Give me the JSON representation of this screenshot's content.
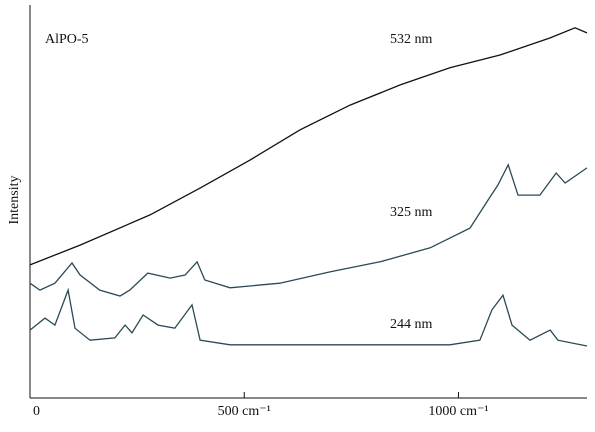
{
  "chart_data": {
    "type": "line",
    "annotations": [
      "AlPO-5"
    ],
    "y_label": "Intensity",
    "xlim": [
      0,
      1300
    ],
    "xticks": [
      0,
      {
        "value": 500,
        "label": "500 cm⁻¹"
      },
      {
        "value": 1000,
        "label": "1000 cm⁻¹"
      }
    ],
    "ylim": [
      0,
      100
    ],
    "series": [
      {
        "name": "532 nm",
        "color": "#111111",
        "x": [
          0,
          117,
          280,
          397,
          513,
          630,
          747,
          864,
          980,
          1097,
          1214,
          1272,
          1300
        ],
        "values": [
          34.3,
          39.4,
          47.2,
          54.1,
          61.3,
          69.1,
          75.5,
          80.7,
          85.1,
          88.4,
          92.8,
          95.4,
          94.1
        ]
      },
      {
        "name": "325 nm",
        "color": "#2a4a55",
        "x": [
          0,
          23,
          58,
          98,
          117,
          163,
          210,
          233,
          275,
          327,
          362,
          390,
          408,
          467,
          583,
          700,
          817,
          934,
          1027,
          1069,
          1092,
          1116,
          1139,
          1190,
          1228,
          1249,
          1300
        ],
        "values": [
          29.6,
          27.8,
          29.6,
          34.8,
          31.7,
          27.8,
          26.3,
          27.8,
          32.2,
          30.9,
          31.7,
          35.1,
          30.4,
          28.4,
          29.6,
          32.5,
          35.1,
          38.7,
          43.8,
          51.0,
          54.9,
          60.1,
          52.3,
          52.3,
          58.0,
          55.4,
          59.3
        ]
      },
      {
        "name": "244 nm",
        "color": "#2a4a55",
        "x": [
          0,
          35,
          58,
          89,
          105,
          140,
          198,
          222,
          238,
          264,
          299,
          338,
          378,
          397,
          467,
          747,
          980,
          1050,
          1078,
          1104,
          1125,
          1167,
          1214,
          1232,
          1300
        ],
        "values": [
          17.5,
          20.6,
          18.8,
          27.8,
          18.0,
          14.9,
          15.5,
          18.8,
          16.8,
          21.4,
          18.8,
          18.0,
          24.0,
          14.9,
          13.7,
          13.7,
          13.7,
          14.9,
          22.7,
          26.5,
          18.8,
          14.9,
          17.5,
          14.9,
          13.4
        ]
      }
    ]
  }
}
